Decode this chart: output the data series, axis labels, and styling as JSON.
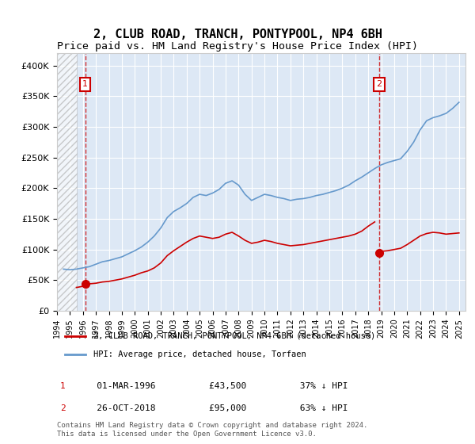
{
  "title": "2, CLUB ROAD, TRANCH, PONTYPOOL, NP4 6BH",
  "subtitle": "Price paid vs. HM Land Registry's House Price Index (HPI)",
  "title_fontsize": 11,
  "subtitle_fontsize": 9.5,
  "ylabel": "",
  "xlabel": "",
  "ylim": [
    0,
    420000
  ],
  "xlim_start": 1994.0,
  "xlim_end": 2025.5,
  "background_color": "#ffffff",
  "plot_bg_color": "#dde8f5",
  "hatch_end_year": 1995.5,
  "sale1_year": 1996.17,
  "sale1_price": 43500,
  "sale2_year": 2018.83,
  "sale2_price": 95000,
  "legend_label1": "2, CLUB ROAD, TRANCH, PONTYPOOL, NP4 6BH (detached house)",
  "legend_label2": "HPI: Average price, detached house, Torfaen",
  "table_row1": [
    "1",
    "01-MAR-1996",
    "£43,500",
    "37% ↓ HPI"
  ],
  "table_row2": [
    "2",
    "26-OCT-2018",
    "£95,000",
    "63% ↓ HPI"
  ],
  "footer": "Contains HM Land Registry data © Crown copyright and database right 2024.\nThis data is licensed under the Open Government Licence v3.0.",
  "line_color_red": "#cc0000",
  "line_color_blue": "#6699cc",
  "hpi_data": [
    [
      1994.5,
      68000
    ],
    [
      1995.0,
      67000
    ],
    [
      1995.5,
      68000
    ],
    [
      1996.0,
      70000
    ],
    [
      1996.5,
      72000
    ],
    [
      1997.0,
      76000
    ],
    [
      1997.5,
      80000
    ],
    [
      1998.0,
      82000
    ],
    [
      1998.5,
      85000
    ],
    [
      1999.0,
      88000
    ],
    [
      1999.5,
      93000
    ],
    [
      2000.0,
      98000
    ],
    [
      2000.5,
      104000
    ],
    [
      2001.0,
      112000
    ],
    [
      2001.5,
      122000
    ],
    [
      2002.0,
      135000
    ],
    [
      2002.5,
      152000
    ],
    [
      2003.0,
      162000
    ],
    [
      2003.5,
      168000
    ],
    [
      2004.0,
      175000
    ],
    [
      2004.5,
      185000
    ],
    [
      2005.0,
      190000
    ],
    [
      2005.5,
      188000
    ],
    [
      2006.0,
      192000
    ],
    [
      2006.5,
      198000
    ],
    [
      2007.0,
      208000
    ],
    [
      2007.5,
      212000
    ],
    [
      2008.0,
      205000
    ],
    [
      2008.5,
      190000
    ],
    [
      2009.0,
      180000
    ],
    [
      2009.5,
      185000
    ],
    [
      2010.0,
      190000
    ],
    [
      2010.5,
      188000
    ],
    [
      2011.0,
      185000
    ],
    [
      2011.5,
      183000
    ],
    [
      2012.0,
      180000
    ],
    [
      2012.5,
      182000
    ],
    [
      2013.0,
      183000
    ],
    [
      2013.5,
      185000
    ],
    [
      2014.0,
      188000
    ],
    [
      2014.5,
      190000
    ],
    [
      2015.0,
      193000
    ],
    [
      2015.5,
      196000
    ],
    [
      2016.0,
      200000
    ],
    [
      2016.5,
      205000
    ],
    [
      2017.0,
      212000
    ],
    [
      2017.5,
      218000
    ],
    [
      2018.0,
      225000
    ],
    [
      2018.5,
      232000
    ],
    [
      2019.0,
      238000
    ],
    [
      2019.5,
      242000
    ],
    [
      2020.0,
      245000
    ],
    [
      2020.5,
      248000
    ],
    [
      2021.0,
      260000
    ],
    [
      2021.5,
      275000
    ],
    [
      2022.0,
      295000
    ],
    [
      2022.5,
      310000
    ],
    [
      2023.0,
      315000
    ],
    [
      2023.5,
      318000
    ],
    [
      2024.0,
      322000
    ],
    [
      2024.5,
      330000
    ],
    [
      2025.0,
      340000
    ]
  ],
  "price_data": [
    [
      1995.5,
      38000
    ],
    [
      1996.0,
      40000
    ],
    [
      1996.17,
      43500
    ],
    [
      1996.5,
      44000
    ],
    [
      1997.0,
      45000
    ],
    [
      1997.5,
      47000
    ],
    [
      1998.0,
      48000
    ],
    [
      1998.5,
      50000
    ],
    [
      1999.0,
      52000
    ],
    [
      1999.5,
      55000
    ],
    [
      2000.0,
      58000
    ],
    [
      2000.5,
      62000
    ],
    [
      2001.0,
      65000
    ],
    [
      2001.5,
      70000
    ],
    [
      2002.0,
      78000
    ],
    [
      2002.5,
      90000
    ],
    [
      2003.0,
      98000
    ],
    [
      2003.5,
      105000
    ],
    [
      2004.0,
      112000
    ],
    [
      2004.5,
      118000
    ],
    [
      2005.0,
      122000
    ],
    [
      2005.5,
      120000
    ],
    [
      2006.0,
      118000
    ],
    [
      2006.5,
      120000
    ],
    [
      2007.0,
      125000
    ],
    [
      2007.5,
      128000
    ],
    [
      2008.0,
      122000
    ],
    [
      2008.5,
      115000
    ],
    [
      2009.0,
      110000
    ],
    [
      2009.5,
      112000
    ],
    [
      2010.0,
      115000
    ],
    [
      2010.5,
      113000
    ],
    [
      2011.0,
      110000
    ],
    [
      2011.5,
      108000
    ],
    [
      2012.0,
      106000
    ],
    [
      2012.5,
      107000
    ],
    [
      2013.0,
      108000
    ],
    [
      2013.5,
      110000
    ],
    [
      2014.0,
      112000
    ],
    [
      2014.5,
      114000
    ],
    [
      2015.0,
      116000
    ],
    [
      2015.5,
      118000
    ],
    [
      2016.0,
      120000
    ],
    [
      2016.5,
      122000
    ],
    [
      2017.0,
      125000
    ],
    [
      2017.5,
      130000
    ],
    [
      2018.0,
      138000
    ],
    [
      2018.5,
      145000
    ],
    [
      2018.83,
      95000
    ],
    [
      2019.0,
      97000
    ],
    [
      2019.5,
      98000
    ],
    [
      2020.0,
      100000
    ],
    [
      2020.5,
      102000
    ],
    [
      2021.0,
      108000
    ],
    [
      2021.5,
      115000
    ],
    [
      2022.0,
      122000
    ],
    [
      2022.5,
      126000
    ],
    [
      2023.0,
      128000
    ],
    [
      2023.5,
      127000
    ],
    [
      2024.0,
      125000
    ],
    [
      2024.5,
      126000
    ],
    [
      2025.0,
      127000
    ]
  ],
  "yticks": [
    0,
    50000,
    100000,
    150000,
    200000,
    250000,
    300000,
    350000,
    400000
  ],
  "ytick_labels": [
    "£0",
    "£50K",
    "£100K",
    "£150K",
    "£200K",
    "£250K",
    "£300K",
    "£350K",
    "£400K"
  ]
}
